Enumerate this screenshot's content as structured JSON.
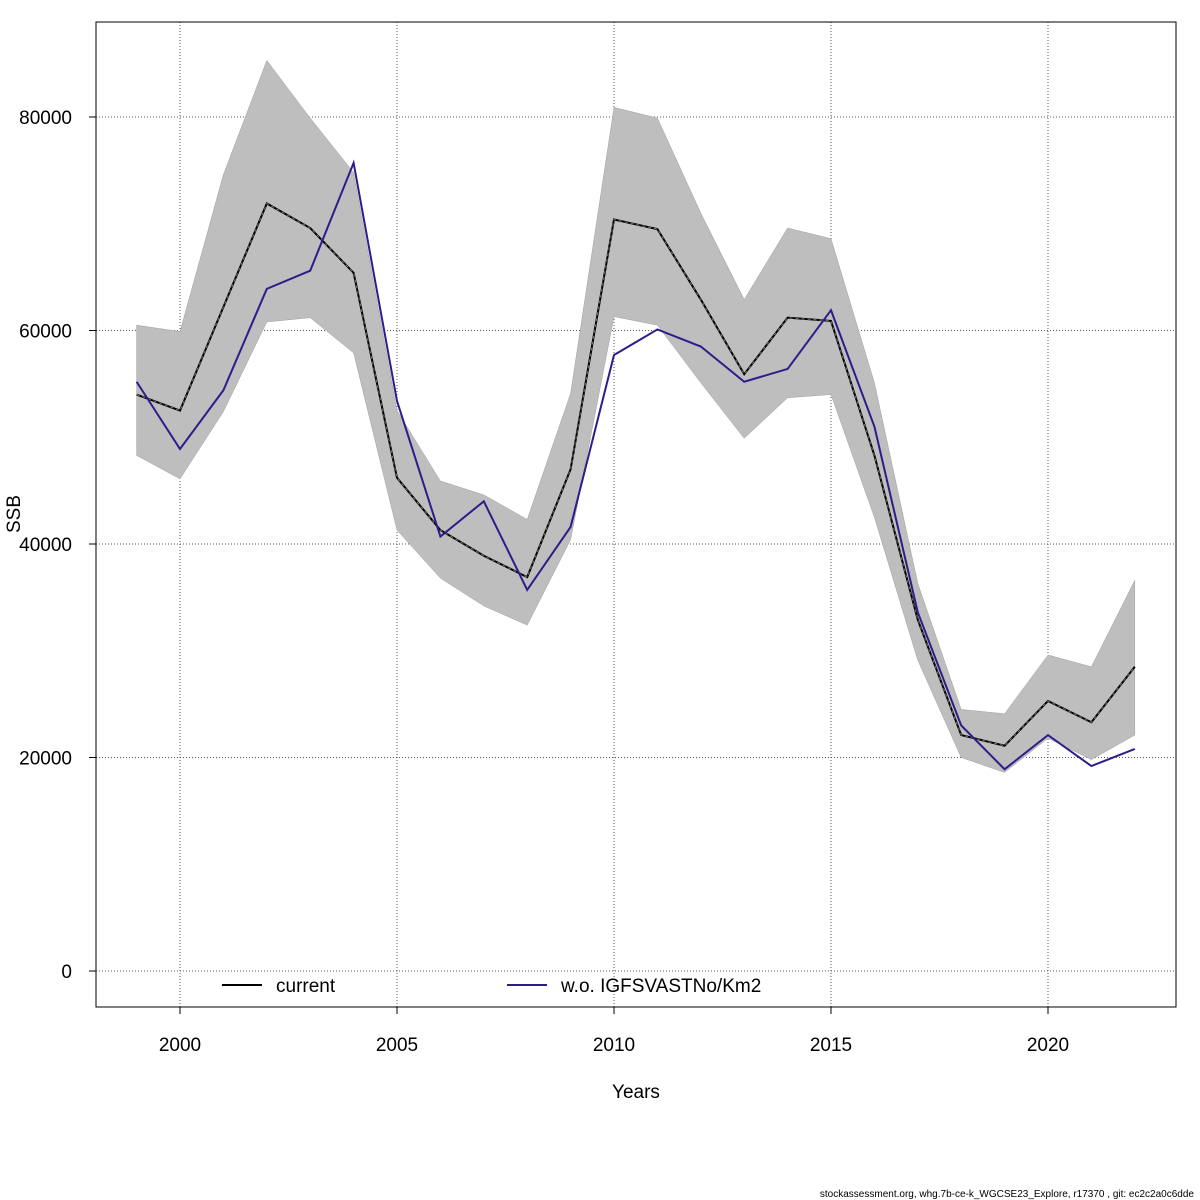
{
  "chart_data": {
    "type": "line",
    "xlabel": "Years",
    "ylabel": "SSB",
    "xlim": [
      1998,
      2023
    ],
    "ylim": [
      -8000,
      88000
    ],
    "x_ticks": [
      2000,
      2005,
      2010,
      2015,
      2020
    ],
    "y_ticks": [
      0,
      20000,
      40000,
      60000,
      80000
    ],
    "grid": true,
    "legend_placement": "bottom",
    "x": [
      1999,
      2000,
      2001,
      2002,
      2003,
      2004,
      2005,
      2006,
      2007,
      2008,
      2009,
      2010,
      2011,
      2012,
      2013,
      2014,
      2015,
      2016,
      2017,
      2018,
      2019,
      2020,
      2021,
      2022
    ],
    "band": {
      "color": "#bebebe",
      "upper": [
        60500,
        59900,
        74600,
        85300,
        79900,
        74800,
        52500,
        45900,
        44600,
        42300,
        54100,
        80900,
        79900,
        71000,
        62900,
        69600,
        68600,
        55100,
        36300,
        24500,
        24100,
        29600,
        28500,
        36600
      ],
      "lower": [
        48300,
        46100,
        52400,
        60800,
        61200,
        57900,
        41300,
        36800,
        34200,
        32400,
        40400,
        61300,
        60500,
        55100,
        49900,
        53700,
        54000,
        42500,
        29100,
        20000,
        18600,
        21800,
        19800,
        22100
      ]
    },
    "series": [
      {
        "name": "current",
        "color": "#000000",
        "values": [
          54000,
          52500,
          62200,
          71900,
          69600,
          65400,
          46200,
          41300,
          38900,
          36900,
          47000,
          70400,
          69500,
          62900,
          55900,
          61200,
          60900,
          48300,
          32900,
          22100,
          21100,
          25300,
          23300,
          28500
        ]
      },
      {
        "name": "w.o. IGFSVASTNo/Km2",
        "color": "#2b1d8a",
        "values": [
          55200,
          48900,
          54400,
          63900,
          65600,
          75700,
          53400,
          40700,
          44000,
          35700,
          41600,
          57700,
          60100,
          58500,
          55200,
          56400,
          61900,
          51000,
          33600,
          23000,
          18900,
          22100,
          19200,
          20800
        ]
      }
    ]
  },
  "footer": "stockassessment.org, whg.7b-ce-k_WGCSE23_Explore, r17370 , git: ec2c2a0c6dde"
}
